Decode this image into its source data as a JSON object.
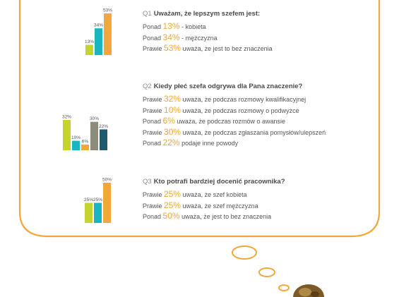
{
  "colors": {
    "bubble_outline": "#f0a83a",
    "accent": "#f0a83a",
    "text": "#555555",
    "bar_colors": [
      "#c5d331",
      "#1ab5c0",
      "#f0a83a",
      "#8c8c7c",
      "#1f5a70"
    ]
  },
  "questions": [
    {
      "number": "Q1",
      "title": "Uważam, że lepszym szefem jest:",
      "lines": [
        {
          "prefix": "Ponad",
          "pct": "13%",
          "text": "- kobieta"
        },
        {
          "prefix": "Ponad",
          "pct": "34%",
          "text": "- mężczyzna"
        },
        {
          "prefix": "Prawie",
          "pct": "53%",
          "text": "uważa, że jest to bez znaczenia"
        }
      ]
    },
    {
      "number": "Q2",
      "title": "Kiedy płeć szefa odgrywa dla Pana znaczenie?",
      "lines": [
        {
          "prefix": "Prawie",
          "pct": "32%",
          "text": "uważa, że podczas rozmowy kwalifikacyjnej"
        },
        {
          "prefix": "Prawie",
          "pct": "10%",
          "text": "uważa, że podczas rozmowy o podwyżce"
        },
        {
          "prefix": "Ponad",
          "pct": "6%",
          "text": "uważa, że podczas rozmów o awansie"
        },
        {
          "prefix": "Prawie",
          "pct": "30%",
          "text": "uważa, że podczas zgłaszania pomysłów/ulepszeń"
        },
        {
          "prefix": "Ponad",
          "pct": "22%",
          "text": "podaje inne powody"
        }
      ]
    },
    {
      "number": "Q3",
      "title": "Kto potrafi bardziej docenić pracownika?",
      "lines": [
        {
          "prefix": "Prawie",
          "pct": "25%",
          "text": "uważa, że szef kobieta"
        },
        {
          "prefix": "Prawie",
          "pct": "25%",
          "text": "uważa, że szef mężczyzna"
        },
        {
          "prefix": "Ponad",
          "pct": "50%",
          "text": "uważa, że jest to bez znaczenia"
        }
      ]
    }
  ],
  "chart_data": [
    {
      "type": "bar",
      "categories": [
        "kobieta",
        "mężczyzna",
        "bez znaczenia"
      ],
      "values": [
        13,
        34,
        53
      ],
      "labels": [
        "13%",
        "34%",
        "53%"
      ],
      "colors": [
        "#c5d331",
        "#1ab5c0",
        "#f0a83a"
      ],
      "ylim": [
        0,
        53
      ]
    },
    {
      "type": "bar",
      "categories": [
        "rozmowa kwalifikacyjna",
        "rozmowa o podwyżce",
        "rozmowy o awansie",
        "zgłaszanie pomysłów/ulepszeń",
        "inne powody"
      ],
      "values": [
        32,
        10,
        6,
        30,
        22
      ],
      "labels": [
        "32%",
        "10%",
        "6%",
        "30%",
        "22%"
      ],
      "colors": [
        "#c5d331",
        "#1ab5c0",
        "#f0a83a",
        "#8c8c7c",
        "#1f5a70"
      ],
      "ylim": [
        0,
        32
      ]
    },
    {
      "type": "bar",
      "categories": [
        "szef kobieta",
        "szef mężczyzna",
        "bez znaczenia"
      ],
      "values": [
        25,
        25,
        50
      ],
      "labels": [
        "25%",
        "25%",
        "50%"
      ],
      "colors": [
        "#c5d331",
        "#1ab5c0",
        "#f0a83a"
      ],
      "ylim": [
        0,
        50
      ]
    }
  ]
}
